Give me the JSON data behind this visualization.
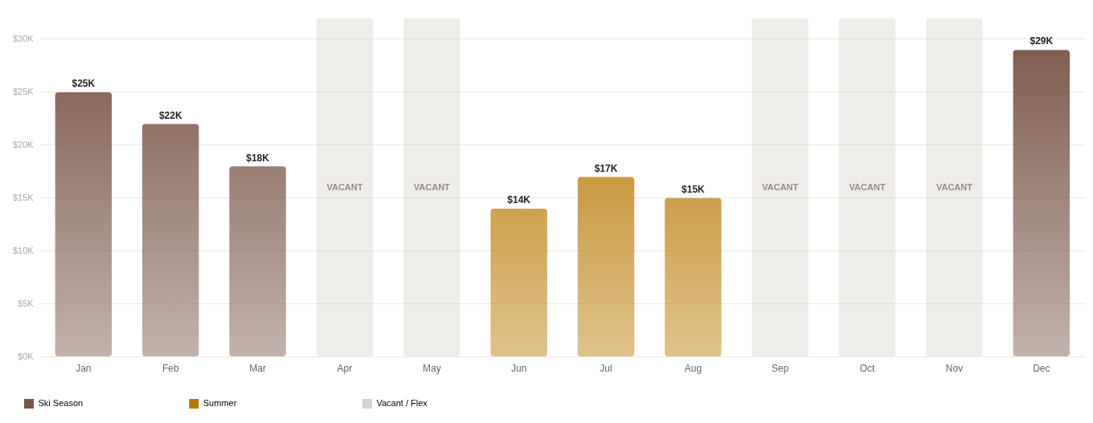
{
  "chart_data": {
    "type": "bar",
    "categories": [
      "Jan",
      "Feb",
      "Mar",
      "Apr",
      "May",
      "Jun",
      "Jul",
      "Aug",
      "Sep",
      "Oct",
      "Nov",
      "Dec"
    ],
    "series": [
      {
        "name": "Ski Season",
        "color": "#7a5547",
        "values": [
          25000,
          22000,
          18000,
          null,
          null,
          null,
          null,
          null,
          null,
          null,
          null,
          29000
        ],
        "value_labels": [
          "$25K",
          "$22K",
          "$18K",
          null,
          null,
          null,
          null,
          null,
          null,
          null,
          null,
          "$29K"
        ]
      },
      {
        "name": "Summer",
        "color": "#b87800",
        "values": [
          null,
          null,
          null,
          null,
          null,
          14000,
          17000,
          15000,
          null,
          null,
          null,
          null
        ],
        "value_labels": [
          null,
          null,
          null,
          null,
          null,
          "$14K",
          "$17K",
          "$15K",
          null,
          null,
          null,
          null
        ]
      },
      {
        "name": "Vacant / Flex",
        "color": "#d8d3c9",
        "values": [
          null,
          null,
          null,
          32000,
          32000,
          null,
          null,
          null,
          32000,
          32000,
          32000,
          null
        ],
        "value_labels": [
          null,
          null,
          null,
          "VACANT",
          "VACANT",
          null,
          null,
          null,
          "VACANT",
          "VACANT",
          "VACANT",
          null
        ]
      }
    ],
    "ylim": [
      0,
      32000
    ],
    "yticks": [
      {
        "value": 0,
        "label": "$0K"
      },
      {
        "value": 5000,
        "label": "$5K"
      },
      {
        "value": 10000,
        "label": "$10K"
      },
      {
        "value": 15000,
        "label": "$15K"
      },
      {
        "value": 20000,
        "label": "$20K"
      },
      {
        "value": 25000,
        "label": "$25K"
      },
      {
        "value": 30000,
        "label": "$30K"
      }
    ],
    "grid": "y",
    "legend": "bottom left"
  }
}
